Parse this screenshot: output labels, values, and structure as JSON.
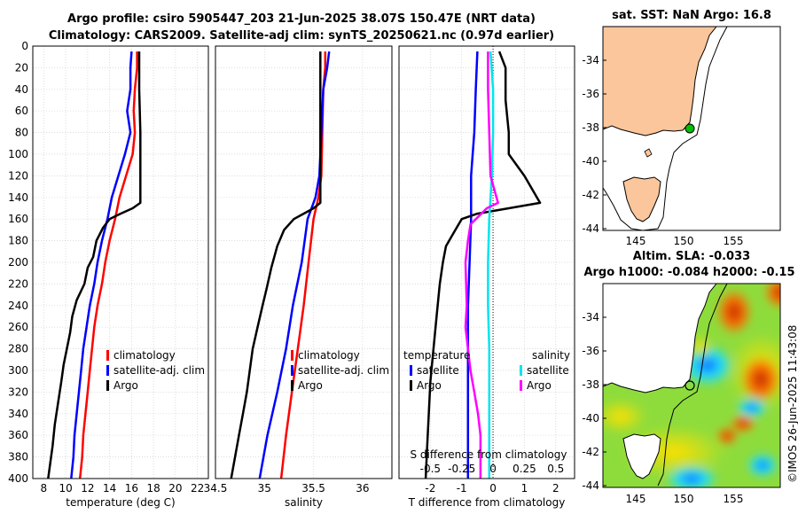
{
  "titles": {
    "line1": "Argo profile: csiro 5905447_203 21-Jun-2025 38.07S 150.47E (NRT data)",
    "line2": "Climatology: CARS2009. Satellite-adj clim: synTS_20250621.nc (0.97d earlier)"
  },
  "map_top": {
    "title": "sat. SST: NaN Argo: 16.8"
  },
  "map_bottom": {
    "title1": "Altim. SLA: -0.033",
    "title2": "Argo h1000: -0.084 h2000: -0.15"
  },
  "watermark": "©IMOS 26-Jun-2025 11:43:08",
  "colors": {
    "climatology": "#ff0000",
    "satellite": "#0000ff",
    "argo": "#000000",
    "salinity_satellite": "#00e5ee",
    "salinity_argo": "#ff00ff",
    "land": "#fbc69b"
  },
  "chart_data": [
    {
      "type": "line",
      "name": "temperature",
      "xlabel": "temperature (deg C)",
      "ylabel": "",
      "xlim": [
        7,
        23
      ],
      "ylim": [
        400,
        0
      ],
      "xticks": [
        "8",
        "10",
        "12",
        "14",
        "16",
        "18",
        "20",
        "22"
      ],
      "yticks": [
        "0",
        "20",
        "40",
        "60",
        "80",
        "100",
        "120",
        "140",
        "160",
        "180",
        "200",
        "220",
        "240",
        "260",
        "280",
        "300",
        "320",
        "340",
        "360",
        "380",
        "400"
      ],
      "legend": [
        "climatology",
        "satellite-adj. clim",
        "Argo"
      ],
      "series": [
        {
          "name": "climatology",
          "color": "red",
          "points": [
            [
              16.5,
              5
            ],
            [
              16.5,
              20
            ],
            [
              16.3,
              40
            ],
            [
              16.2,
              60
            ],
            [
              16.3,
              80
            ],
            [
              16.1,
              100
            ],
            [
              15.5,
              120
            ],
            [
              14.9,
              140
            ],
            [
              14.5,
              160
            ],
            [
              14.0,
              180
            ],
            [
              13.6,
              200
            ],
            [
              13.3,
              220
            ],
            [
              12.9,
              240
            ],
            [
              12.6,
              260
            ],
            [
              12.4,
              280
            ],
            [
              12.2,
              300
            ],
            [
              12.0,
              320
            ],
            [
              11.8,
              340
            ],
            [
              11.6,
              360
            ],
            [
              11.5,
              380
            ],
            [
              11.3,
              400
            ]
          ]
        },
        {
          "name": "satellite-adj. clim",
          "color": "blue",
          "points": [
            [
              16.0,
              5
            ],
            [
              15.9,
              20
            ],
            [
              15.9,
              40
            ],
            [
              15.6,
              60
            ],
            [
              15.9,
              80
            ],
            [
              15.4,
              100
            ],
            [
              14.8,
              120
            ],
            [
              14.2,
              140
            ],
            [
              13.8,
              160
            ],
            [
              13.3,
              180
            ],
            [
              12.9,
              200
            ],
            [
              12.6,
              220
            ],
            [
              12.2,
              240
            ],
            [
              11.9,
              260
            ],
            [
              11.6,
              280
            ],
            [
              11.4,
              300
            ],
            [
              11.2,
              320
            ],
            [
              11.0,
              340
            ],
            [
              10.8,
              360
            ],
            [
              10.7,
              380
            ],
            [
              10.5,
              400
            ]
          ]
        },
        {
          "name": "Argo",
          "color": "black",
          "points": [
            [
              16.7,
              5
            ],
            [
              16.7,
              40
            ],
            [
              16.8,
              80
            ],
            [
              16.8,
              120
            ],
            [
              16.8,
              145
            ],
            [
              16.1,
              150
            ],
            [
              15.0,
              155
            ],
            [
              14.0,
              160
            ],
            [
              13.4,
              168
            ],
            [
              12.8,
              180
            ],
            [
              12.5,
              195
            ],
            [
              12.0,
              205
            ],
            [
              11.7,
              220
            ],
            [
              11.0,
              235
            ],
            [
              10.6,
              250
            ],
            [
              10.4,
              265
            ],
            [
              10.1,
              280
            ],
            [
              9.8,
              295
            ],
            [
              9.6,
              310
            ],
            [
              9.3,
              330
            ],
            [
              9.0,
              350
            ],
            [
              8.8,
              370
            ],
            [
              8.6,
              385
            ],
            [
              8.4,
              400
            ]
          ]
        }
      ]
    },
    {
      "type": "line",
      "name": "salinity",
      "xlabel": "salinity",
      "ylabel": "",
      "xlim": [
        34.5,
        36.3
      ],
      "ylim": [
        400,
        0
      ],
      "xticks": [
        "34.5",
        "35",
        "35.5",
        "36"
      ],
      "legend": [
        "climatology",
        "satellite-adj. clim",
        "Argo"
      ],
      "series": [
        {
          "name": "climatology",
          "color": "red",
          "points": [
            [
              35.62,
              5
            ],
            [
              35.62,
              20
            ],
            [
              35.6,
              40
            ],
            [
              35.59,
              80
            ],
            [
              35.58,
              120
            ],
            [
              35.55,
              140
            ],
            [
              35.5,
              160
            ],
            [
              35.45,
              200
            ],
            [
              35.4,
              240
            ],
            [
              35.34,
              280
            ],
            [
              35.28,
              320
            ],
            [
              35.22,
              360
            ],
            [
              35.17,
              400
            ]
          ]
        },
        {
          "name": "satellite-adj. clim",
          "color": "blue",
          "points": [
            [
              35.66,
              5
            ],
            [
              35.64,
              20
            ],
            [
              35.6,
              40
            ],
            [
              35.58,
              80
            ],
            [
              35.56,
              120
            ],
            [
              35.52,
              140
            ],
            [
              35.44,
              160
            ],
            [
              35.38,
              200
            ],
            [
              35.29,
              240
            ],
            [
              35.22,
              280
            ],
            [
              35.13,
              320
            ],
            [
              35.03,
              360
            ],
            [
              34.95,
              400
            ]
          ]
        },
        {
          "name": "Argo",
          "color": "black",
          "points": [
            [
              35.57,
              5
            ],
            [
              35.57,
              40
            ],
            [
              35.57,
              80
            ],
            [
              35.57,
              120
            ],
            [
              35.57,
              145
            ],
            [
              35.5,
              150
            ],
            [
              35.4,
              155
            ],
            [
              35.3,
              160
            ],
            [
              35.2,
              170
            ],
            [
              35.13,
              185
            ],
            [
              35.07,
              205
            ],
            [
              35.02,
              225
            ],
            [
              34.98,
              240
            ],
            [
              34.93,
              260
            ],
            [
              34.88,
              280
            ],
            [
              34.85,
              300
            ],
            [
              34.82,
              320
            ],
            [
              34.78,
              340
            ],
            [
              34.74,
              360
            ],
            [
              34.7,
              380
            ],
            [
              34.66,
              400
            ]
          ]
        }
      ]
    },
    {
      "type": "line",
      "name": "difference",
      "xlabel": "T difference from climatology",
      "xlabel_top": "S difference from climatology",
      "xlim": [
        -3,
        2.6
      ],
      "xlim_top": [
        -0.75,
        0.65
      ],
      "ylim": [
        400,
        0
      ],
      "xticks": [
        "-2",
        "-1",
        "0",
        "1",
        "2"
      ],
      "xticks_top": [
        "-0.5",
        "-0.25",
        "0",
        "0.25",
        "0.5"
      ],
      "legend_temperature": {
        "title": "temperature",
        "items": [
          "satellite",
          "Argo"
        ]
      },
      "legend_salinity": {
        "title": "salinity",
        "items": [
          "satellite",
          "Argo"
        ]
      },
      "series": [
        {
          "name": "temperature satellite",
          "color": "blue",
          "points": [
            [
              -0.5,
              5
            ],
            [
              -0.55,
              40
            ],
            [
              -0.6,
              80
            ],
            [
              -0.7,
              120
            ],
            [
              -0.7,
              160
            ],
            [
              -0.75,
              200
            ],
            [
              -0.8,
              240
            ],
            [
              -0.8,
              280
            ],
            [
              -0.8,
              320
            ],
            [
              -0.8,
              360
            ],
            [
              -0.8,
              400
            ]
          ]
        },
        {
          "name": "temperature Argo",
          "color": "black",
          "points": [
            [
              0.2,
              5
            ],
            [
              0.4,
              20
            ],
            [
              0.4,
              50
            ],
            [
              0.5,
              80
            ],
            [
              0.5,
              100
            ],
            [
              1.0,
              120
            ],
            [
              1.5,
              145
            ],
            [
              0.5,
              150
            ],
            [
              -0.5,
              155
            ],
            [
              -1.0,
              160
            ],
            [
              -1.2,
              170
            ],
            [
              -1.5,
              185
            ],
            [
              -1.6,
              200
            ],
            [
              -1.7,
              220
            ],
            [
              -1.8,
              250
            ],
            [
              -1.9,
              280
            ],
            [
              -2.0,
              310
            ],
            [
              -2.05,
              340
            ],
            [
              -2.1,
              370
            ],
            [
              -2.15,
              400
            ]
          ]
        },
        {
          "name": "salinity satellite",
          "color": "cyan",
          "points": [
            [
              -0.02,
              5
            ],
            [
              0.0,
              40
            ],
            [
              0.0,
              80
            ],
            [
              -0.01,
              120
            ],
            [
              -0.03,
              160
            ],
            [
              -0.04,
              200
            ],
            [
              -0.04,
              240
            ],
            [
              -0.03,
              280
            ],
            [
              -0.03,
              320
            ],
            [
              -0.03,
              360
            ],
            [
              -0.03,
              400
            ]
          ]
        },
        {
          "name": "salinity Argo",
          "color": "magenta",
          "points": [
            [
              -0.04,
              5
            ],
            [
              -0.04,
              40
            ],
            [
              -0.03,
              80
            ],
            [
              -0.02,
              120
            ],
            [
              0.04,
              145
            ],
            [
              -0.05,
              150
            ],
            [
              -0.12,
              158
            ],
            [
              -0.18,
              165
            ],
            [
              -0.2,
              180
            ],
            [
              -0.22,
              200
            ],
            [
              -0.21,
              240
            ],
            [
              -0.22,
              260
            ],
            [
              -0.2,
              280
            ],
            [
              -0.18,
              300
            ],
            [
              -0.15,
              320
            ],
            [
              -0.12,
              340
            ],
            [
              -0.1,
              360
            ],
            [
              -0.1,
              400
            ]
          ]
        }
      ]
    },
    {
      "type": "map",
      "name": "sst-map",
      "title": "sat. SST: NaN Argo: 16.8",
      "xticks": [
        "145",
        "150",
        "155"
      ],
      "yticks": [
        "-34",
        "-36",
        "-38",
        "-40",
        "-42",
        "-44"
      ],
      "argo_position": {
        "lon": 150.47,
        "lat": -38.07
      }
    },
    {
      "type": "heatmap",
      "name": "sla-map",
      "title": "Altim. SLA: -0.033",
      "xticks": [
        "145",
        "150",
        "155"
      ],
      "yticks": [
        "-34",
        "-36",
        "-38",
        "-40",
        "-42",
        "-44"
      ],
      "argo_position": {
        "lon": 150.47,
        "lat": -38.07
      }
    }
  ]
}
